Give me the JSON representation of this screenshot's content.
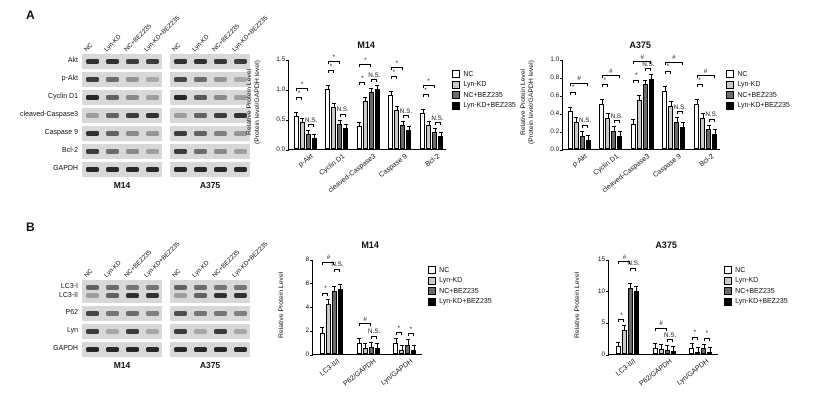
{
  "colors": {
    "series": [
      "#ffffff",
      "#c9c9c9",
      "#6b6b6b",
      "#000000"
    ],
    "band": "#141414",
    "strip_bg": "#d8d8d8"
  },
  "panels": {
    "A": {
      "label": "A",
      "blot": {
        "lane_labels": [
          "NC",
          "Lyn-KD",
          "NC+BEZ235",
          "Lyn-KD+BEZ235"
        ],
        "group_labels": [
          "M14",
          "A375"
        ],
        "rows": [
          {
            "labels": [
              "Akt"
            ],
            "bands": [
              [
                0.85,
                0.85,
                0.8,
                0.8,
                0.85,
                0.85,
                0.82,
                0.8
              ]
            ]
          },
          {
            "labels": [
              "p-Akt"
            ],
            "bands": [
              [
                0.8,
                0.55,
                0.35,
                0.25,
                0.75,
                0.55,
                0.35,
                0.25
              ]
            ]
          },
          {
            "labels": [
              "Cyclin D1"
            ],
            "bands": [
              [
                0.9,
                0.6,
                0.4,
                0.3,
                0.9,
                0.65,
                0.4,
                0.3
              ]
            ]
          },
          {
            "labels": [
              "cleaved-Caspase3"
            ],
            "bands": [
              [
                0.3,
                0.6,
                0.8,
                0.85,
                0.3,
                0.6,
                0.8,
                0.85
              ]
            ]
          },
          {
            "labels": [
              "Caspase 9"
            ],
            "bands": [
              [
                0.85,
                0.6,
                0.4,
                0.35,
                0.8,
                0.6,
                0.45,
                0.35
              ]
            ]
          },
          {
            "labels": [
              "Bcl-2"
            ],
            "bands": [
              [
                0.8,
                0.55,
                0.4,
                0.3,
                0.8,
                0.55,
                0.4,
                0.3
              ]
            ]
          },
          {
            "labels": [
              "GAPDH"
            ],
            "bands": [
              [
                0.9,
                0.9,
                0.9,
                0.9,
                0.9,
                0.9,
                0.9,
                0.9
              ]
            ]
          }
        ]
      }
    },
    "B": {
      "label": "B",
      "blot": {
        "lane_labels": [
          "NC",
          "Lyn-KD",
          "NC+BEZ235",
          "Lyn-KD+BEZ235"
        ],
        "group_labels": [
          "M14",
          "A375"
        ],
        "rows": [
          {
            "labels": [
              "LC3-I",
              "LC3-II"
            ],
            "bands": [
              [
                0.6,
                0.55,
                0.5,
                0.5,
                0.6,
                0.55,
                0.5,
                0.5
              ],
              [
                0.3,
                0.6,
                0.85,
                0.85,
                0.3,
                0.6,
                0.85,
                0.85
              ]
            ]
          },
          {
            "labels": [
              "P62"
            ],
            "bands": [
              [
                0.75,
                0.5,
                0.55,
                0.45,
                0.7,
                0.5,
                0.5,
                0.45
              ]
            ]
          },
          {
            "labels": [
              "Lyn"
            ],
            "bands": [
              [
                0.8,
                0.25,
                0.8,
                0.25,
                0.8,
                0.25,
                0.8,
                0.25
              ]
            ]
          },
          {
            "labels": [
              "GAPDH"
            ],
            "bands": [
              [
                0.9,
                0.9,
                0.9,
                0.9,
                0.9,
                0.9,
                0.9,
                0.9
              ]
            ]
          }
        ]
      }
    }
  },
  "chart_data": [
    {
      "id": "A-M14",
      "type": "bar",
      "title": "M14",
      "ylabel": "Relative Protein Level",
      "ylabel2": "(Protein level/GAPDH level)",
      "categories": [
        "p-Akt",
        "Cyclin D1",
        "cleaved-Caspase3",
        "Caspase 9",
        "Bcl-2"
      ],
      "series": [
        {
          "name": "NC",
          "values": [
            0.55,
            1.0,
            0.38,
            0.9,
            0.6
          ]
        },
        {
          "name": "Lyn-KD",
          "values": [
            0.45,
            0.7,
            0.8,
            0.65,
            0.4
          ]
        },
        {
          "name": "NC+BEZ235",
          "values": [
            0.25,
            0.42,
            0.95,
            0.4,
            0.28
          ]
        },
        {
          "name": "Lyn-KD+BEZ235",
          "values": [
            0.18,
            0.35,
            1.0,
            0.32,
            0.22
          ]
        }
      ],
      "err": 0.05,
      "ylim": [
        0,
        1.5
      ],
      "yticks": [
        0,
        0.5,
        1.0,
        1.5
      ],
      "ytick_labels": [
        "0.0",
        "0.5",
        "1.0",
        "1.5"
      ],
      "legend_position": "right",
      "annotations": [
        {
          "cat": 0,
          "from": 0,
          "to": 1,
          "text": "*",
          "level": 1
        },
        {
          "cat": 0,
          "from": 0,
          "to": 2,
          "text": "*",
          "level": 2
        },
        {
          "cat": 0,
          "from": 2,
          "to": 3,
          "text": "N.S.",
          "level": 0
        },
        {
          "cat": 1,
          "from": 0,
          "to": 1,
          "text": "*",
          "level": 1
        },
        {
          "cat": 1,
          "from": 0,
          "to": 2,
          "text": "*",
          "level": 2
        },
        {
          "cat": 1,
          "from": 2,
          "to": 3,
          "text": "N.S.",
          "level": 0
        },
        {
          "cat": 2,
          "from": 0,
          "to": 1,
          "text": "*",
          "level": 1
        },
        {
          "cat": 2,
          "from": 0,
          "to": 2,
          "text": "*",
          "level": 2
        },
        {
          "cat": 2,
          "from": 2,
          "to": 3,
          "text": "N.S.",
          "level": 0
        },
        {
          "cat": 3,
          "from": 0,
          "to": 1,
          "text": "*",
          "level": 1
        },
        {
          "cat": 3,
          "from": 0,
          "to": 2,
          "text": "*",
          "level": 2
        },
        {
          "cat": 3,
          "from": 2,
          "to": 3,
          "text": "N.S.",
          "level": 0
        },
        {
          "cat": 4,
          "from": 0,
          "to": 1,
          "text": "*",
          "level": 1
        },
        {
          "cat": 4,
          "from": 0,
          "to": 2,
          "text": "*",
          "level": 2
        },
        {
          "cat": 4,
          "from": 2,
          "to": 3,
          "text": "N.S.",
          "level": 0
        }
      ]
    },
    {
      "id": "A-A375",
      "type": "bar",
      "title": "A375",
      "ylabel": "Relative Protein Level",
      "ylabel2": "(Protein level/GAPDH level)",
      "categories": [
        "p-Akt",
        "Cyclin D1",
        "cleaved-Caspase3",
        "Caspase 9",
        "Bcl-2"
      ],
      "series": [
        {
          "name": "NC",
          "values": [
            0.42,
            0.5,
            0.28,
            0.65,
            0.5
          ]
        },
        {
          "name": "Lyn-KD",
          "values": [
            0.3,
            0.35,
            0.55,
            0.48,
            0.35
          ]
        },
        {
          "name": "NC+BEZ235",
          "values": [
            0.15,
            0.2,
            0.72,
            0.3,
            0.22
          ]
        },
        {
          "name": "Lyn-KD+BEZ235",
          "values": [
            0.1,
            0.15,
            0.78,
            0.25,
            0.17
          ]
        }
      ],
      "err": 0.04,
      "ylim": [
        0,
        1.0
      ],
      "yticks": [
        0,
        0.2,
        0.4,
        0.6,
        0.8,
        1.0
      ],
      "ytick_labels": [
        "0.0",
        "0.2",
        "0.4",
        "0.6",
        "0.8",
        "1.0"
      ],
      "legend_position": "right",
      "annotations": [
        {
          "cat": 0,
          "from": 0,
          "to": 1,
          "text": "*",
          "level": 1
        },
        {
          "cat": 0,
          "from": 0,
          "to": 3,
          "text": "#",
          "level": 2
        },
        {
          "cat": 0,
          "from": 2,
          "to": 3,
          "text": "N.S.",
          "level": 0
        },
        {
          "cat": 1,
          "from": 0,
          "to": 1,
          "text": "*",
          "level": 1
        },
        {
          "cat": 1,
          "from": 0,
          "to": 3,
          "text": "#",
          "level": 2
        },
        {
          "cat": 1,
          "from": 2,
          "to": 3,
          "text": "N.S.",
          "level": 0
        },
        {
          "cat": 2,
          "from": 0,
          "to": 1,
          "text": "*",
          "level": 1
        },
        {
          "cat": 2,
          "from": 0,
          "to": 3,
          "text": "#",
          "level": 2
        },
        {
          "cat": 2,
          "from": 2,
          "to": 3,
          "text": "N.S.",
          "level": 0
        },
        {
          "cat": 3,
          "from": 0,
          "to": 1,
          "text": "*",
          "level": 1
        },
        {
          "cat": 3,
          "from": 0,
          "to": 3,
          "text": "#",
          "level": 2
        },
        {
          "cat": 3,
          "from": 2,
          "to": 3,
          "text": "N.S.",
          "level": 0
        },
        {
          "cat": 4,
          "from": 0,
          "to": 1,
          "text": "*",
          "level": 1
        },
        {
          "cat": 4,
          "from": 0,
          "to": 3,
          "text": "#",
          "level": 2
        },
        {
          "cat": 4,
          "from": 2,
          "to": 3,
          "text": "N.S.",
          "level": 0
        }
      ]
    },
    {
      "id": "B-M14",
      "type": "bar",
      "title": "M14",
      "ylabel": "Relative Protein Level",
      "ylabel2": "",
      "categories": [
        "LC3-II/I",
        "P62/GAPDH",
        "Lyn/GAPDH"
      ],
      "series": [
        {
          "name": "NC",
          "values": [
            1.8,
            0.9,
            0.9
          ]
        },
        {
          "name": "Lyn-KD",
          "values": [
            4.2,
            0.5,
            0.3
          ]
        },
        {
          "name": "NC+BEZ235",
          "values": [
            5.3,
            0.6,
            0.8
          ]
        },
        {
          "name": "Lyn-KD+BEZ235",
          "values": [
            5.5,
            0.5,
            0.3
          ]
        }
      ],
      "err": 0.35,
      "ylim": [
        0,
        8
      ],
      "yticks": [
        0,
        2,
        4,
        6,
        8
      ],
      "ytick_labels": [
        "0",
        "2",
        "4",
        "6",
        "8"
      ],
      "legend_position": "right",
      "annotations": [
        {
          "cat": 0,
          "from": 0,
          "to": 1,
          "text": "*",
          "level": 0
        },
        {
          "cat": 0,
          "from": 0,
          "to": 2,
          "text": "#",
          "level": 2
        },
        {
          "cat": 0,
          "from": 2,
          "to": 3,
          "text": "N.S.",
          "level": 1
        },
        {
          "cat": 1,
          "from": 0,
          "to": 2,
          "text": "#",
          "level": 1
        },
        {
          "cat": 1,
          "from": 2,
          "to": 3,
          "text": "N.S.",
          "level": 0
        },
        {
          "cat": 2,
          "from": 0,
          "to": 1,
          "text": "*",
          "level": 0
        },
        {
          "cat": 2,
          "from": 2,
          "to": 3,
          "text": "*",
          "level": 0
        }
      ]
    },
    {
      "id": "B-A375",
      "type": "bar",
      "title": "A375",
      "ylabel": "Relative Protein Level",
      "ylabel2": "",
      "categories": [
        "LC3-II/I",
        "P62/GAPDH",
        "Lyn/GAPDH"
      ],
      "series": [
        {
          "name": "NC",
          "values": [
            1.2,
            1.0,
            1.0
          ]
        },
        {
          "name": "Lyn-KD",
          "values": [
            3.8,
            0.8,
            0.3
          ]
        },
        {
          "name": "NC+BEZ235",
          "values": [
            10.5,
            0.6,
            0.9
          ]
        },
        {
          "name": "Lyn-KD+BEZ235",
          "values": [
            10.0,
            0.5,
            0.3
          ]
        }
      ],
      "err": 0.6,
      "ylim": [
        0,
        15
      ],
      "yticks": [
        0,
        5,
        10,
        15
      ],
      "ytick_labels": [
        "0",
        "5",
        "10",
        "15"
      ],
      "legend_position": "right",
      "annotations": [
        {
          "cat": 0,
          "from": 0,
          "to": 1,
          "text": "*",
          "level": 0
        },
        {
          "cat": 0,
          "from": 0,
          "to": 2,
          "text": "#",
          "level": 2
        },
        {
          "cat": 0,
          "from": 2,
          "to": 3,
          "text": "N.S.",
          "level": 1
        },
        {
          "cat": 1,
          "from": 0,
          "to": 2,
          "text": "#",
          "level": 1
        },
        {
          "cat": 1,
          "from": 2,
          "to": 3,
          "text": "N.S.",
          "level": 0
        },
        {
          "cat": 2,
          "from": 0,
          "to": 1,
          "text": "*",
          "level": 0
        },
        {
          "cat": 2,
          "from": 2,
          "to": 3,
          "text": "*",
          "level": 0
        }
      ]
    }
  ]
}
